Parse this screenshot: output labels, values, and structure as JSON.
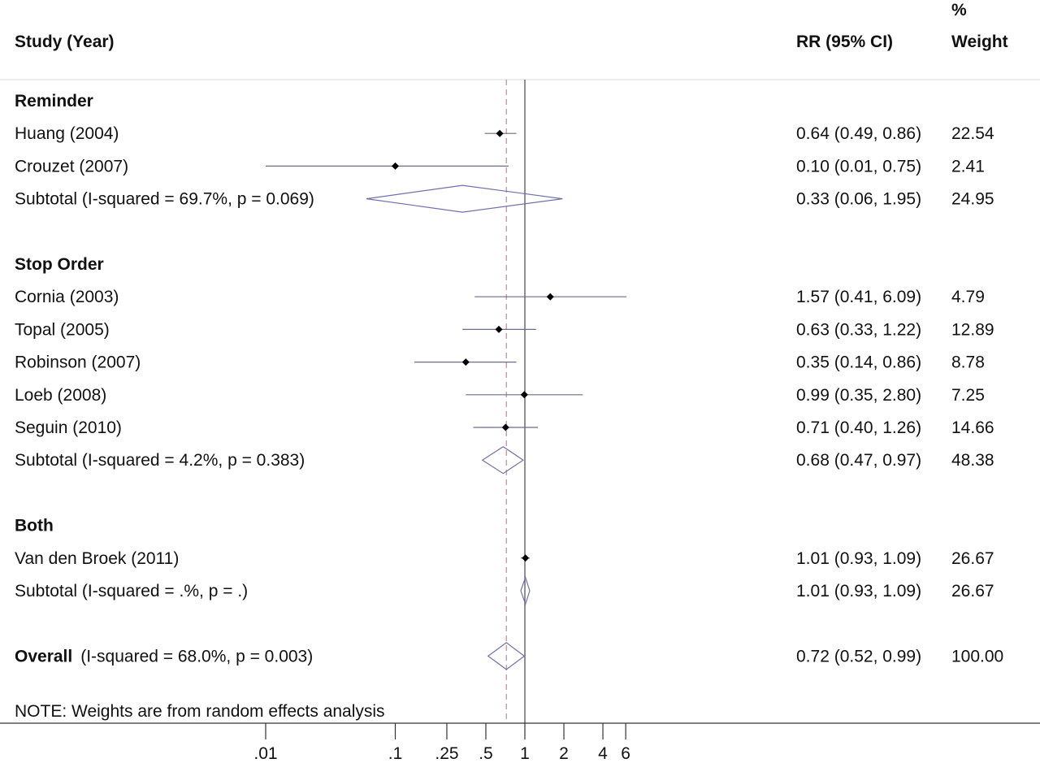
{
  "header": {
    "study_label": "Study (Year)",
    "rr_label": "RR (95% CI)",
    "weight_label_line1": "%",
    "weight_label_line2": "Weight"
  },
  "note": "NOTE: Weights are from random effects analysis",
  "colors": {
    "null_line": "#555555",
    "overall_line": "#d48a96",
    "ci_line": "#6b6b8a",
    "diamond": "#7070b0",
    "point": "#000000"
  },
  "chart_data": {
    "type": "forest",
    "x_scale": "log",
    "x_ticks": [
      {
        "value": 0.01,
        "label": ".01"
      },
      {
        "value": 0.1,
        "label": ".1"
      },
      {
        "value": 0.25,
        "label": ".25"
      },
      {
        "value": 0.5,
        "label": ".5"
      },
      {
        "value": 1,
        "label": "1"
      },
      {
        "value": 2,
        "label": "2"
      },
      {
        "value": 4,
        "label": "4"
      },
      {
        "value": 6,
        "label": "6"
      }
    ],
    "null_value": 1,
    "overall_estimate": 0.72,
    "rows": [
      {
        "kind": "group",
        "label": "Reminder"
      },
      {
        "kind": "study",
        "label": "Huang (2004)",
        "rr": 0.64,
        "lo": 0.49,
        "hi": 0.86,
        "ci_text": "0.64 (0.49, 0.86)",
        "weight": "22.54"
      },
      {
        "kind": "study",
        "label": "Crouzet (2007)",
        "rr": 0.1,
        "lo": 0.01,
        "hi": 0.75,
        "ci_text": "0.10 (0.01, 0.75)",
        "weight": "2.41"
      },
      {
        "kind": "subtotal",
        "label": "Subtotal  (I-squared = 69.7%, p = 0.069)",
        "rr": 0.33,
        "lo": 0.06,
        "hi": 1.95,
        "ci_text": "0.33 (0.06, 1.95)",
        "weight": "24.95"
      },
      {
        "kind": "blank"
      },
      {
        "kind": "group",
        "label": "Stop Order"
      },
      {
        "kind": "study",
        "label": "Cornia (2003)",
        "rr": 1.57,
        "lo": 0.41,
        "hi": 6.09,
        "ci_text": "1.57 (0.41, 6.09)",
        "weight": "4.79"
      },
      {
        "kind": "study",
        "label": "Topal (2005)",
        "rr": 0.63,
        "lo": 0.33,
        "hi": 1.22,
        "ci_text": "0.63 (0.33, 1.22)",
        "weight": "12.89"
      },
      {
        "kind": "study",
        "label": "Robinson (2007)",
        "rr": 0.35,
        "lo": 0.14,
        "hi": 0.86,
        "ci_text": "0.35 (0.14, 0.86)",
        "weight": "8.78"
      },
      {
        "kind": "study",
        "label": "Loeb (2008)",
        "rr": 0.99,
        "lo": 0.35,
        "hi": 2.8,
        "ci_text": "0.99 (0.35, 2.80)",
        "weight": "7.25"
      },
      {
        "kind": "study",
        "label": "Seguin (2010)",
        "rr": 0.71,
        "lo": 0.4,
        "hi": 1.26,
        "ci_text": "0.71 (0.40, 1.26)",
        "weight": "14.66"
      },
      {
        "kind": "subtotal",
        "label": "Subtotal  (I-squared = 4.2%, p = 0.383)",
        "rr": 0.68,
        "lo": 0.47,
        "hi": 0.97,
        "ci_text": "0.68 (0.47, 0.97)",
        "weight": "48.38"
      },
      {
        "kind": "blank"
      },
      {
        "kind": "group",
        "label": "Both"
      },
      {
        "kind": "study",
        "label": "Van den Broek (2011)",
        "rr": 1.01,
        "lo": 0.93,
        "hi": 1.09,
        "ci_text": "1.01 (0.93, 1.09)",
        "weight": "26.67"
      },
      {
        "kind": "subtotal",
        "label": "Subtotal  (I-squared = .%, p = .)",
        "rr": 1.01,
        "lo": 0.93,
        "hi": 1.09,
        "ci_text": "1.01 (0.93, 1.09)",
        "weight": "26.67"
      },
      {
        "kind": "blank"
      },
      {
        "kind": "overall",
        "label_bold": "Overall",
        "label": "(I-squared = 68.0%, p = 0.003)",
        "rr": 0.72,
        "lo": 0.52,
        "hi": 0.99,
        "ci_text": "0.72 (0.52, 0.99)",
        "weight": "100.00"
      }
    ]
  }
}
